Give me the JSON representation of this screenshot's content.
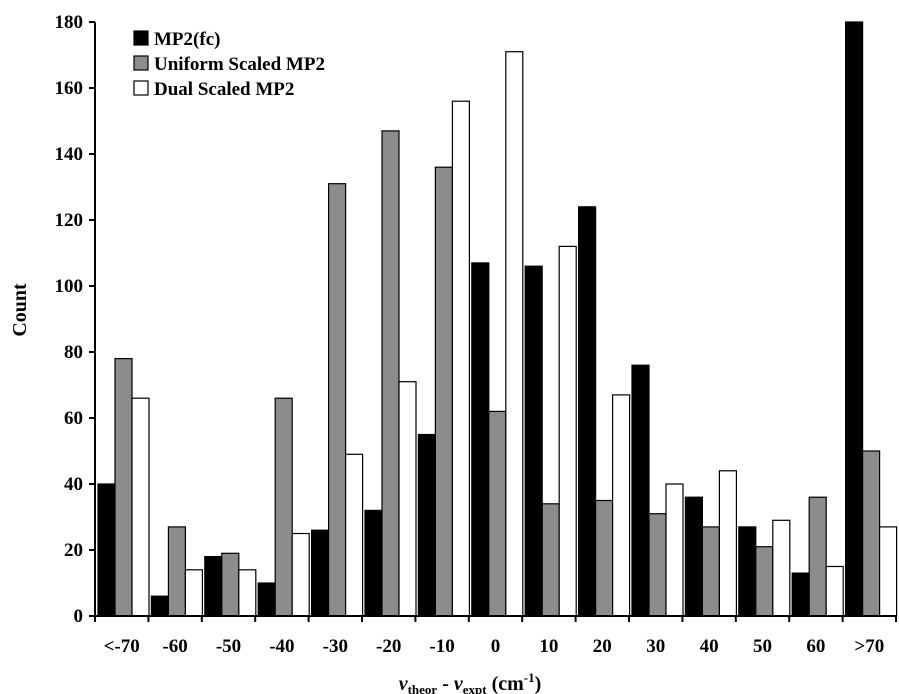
{
  "chart_data": {
    "type": "bar",
    "title": "",
    "ylabel": "Count",
    "xlabel": {
      "nu1": "ν",
      "sub1": "theor",
      "minus": " - ",
      "nu2": "ν",
      "sub2": "expt",
      "unit_open": " (cm",
      "unit_sup": "-1",
      "unit_close": ")"
    },
    "ylim": [
      0,
      180
    ],
    "yticks": [
      0,
      20,
      40,
      60,
      80,
      100,
      120,
      140,
      160,
      180
    ],
    "grid": false,
    "legend_position": "top-left",
    "categories": [
      "<-70",
      "-60",
      "-50",
      "-40",
      "-30",
      "-20",
      "-10",
      "0",
      "10",
      "20",
      "30",
      "40",
      "50",
      "60",
      ">70"
    ],
    "series": [
      {
        "name": "MP2(fc)",
        "color": "#000000",
        "values": [
          40,
          6,
          18,
          10,
          26,
          32,
          55,
          107,
          106,
          124,
          76,
          36,
          27,
          13,
          180
        ]
      },
      {
        "name": "Uniform Scaled MP2",
        "color": "#8c8c8c",
        "values": [
          78,
          27,
          19,
          66,
          131,
          147,
          136,
          62,
          34,
          35,
          31,
          27,
          21,
          36,
          50
        ]
      },
      {
        "name": "Dual Scaled MP2",
        "color": "#ffffff",
        "values": [
          66,
          14,
          14,
          25,
          49,
          71,
          156,
          171,
          112,
          67,
          40,
          44,
          29,
          15,
          27
        ]
      }
    ]
  }
}
